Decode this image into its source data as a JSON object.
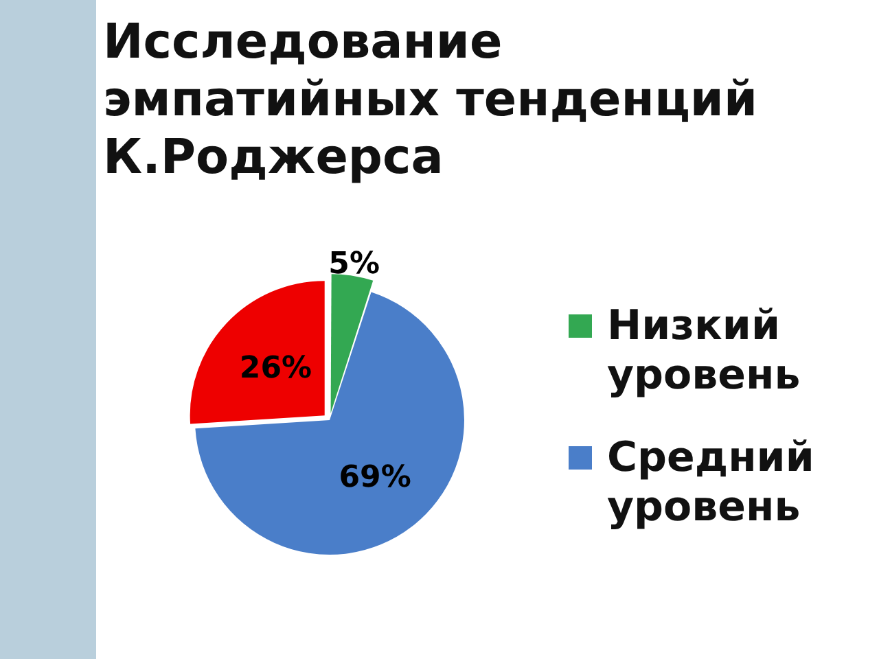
{
  "chart_data": {
    "type": "pie",
    "title": "Исследование эмпатийных тенденций К.Роджерса",
    "categories": [
      "Низкий уровень",
      "Средний уровень",
      null
    ],
    "values": [
      5,
      69,
      26
    ],
    "colors": [
      "#33a852",
      "#4a7ec9",
      "#ee0000"
    ],
    "value_labels": [
      "5%",
      "69%",
      "26%"
    ],
    "legend": "right"
  }
}
